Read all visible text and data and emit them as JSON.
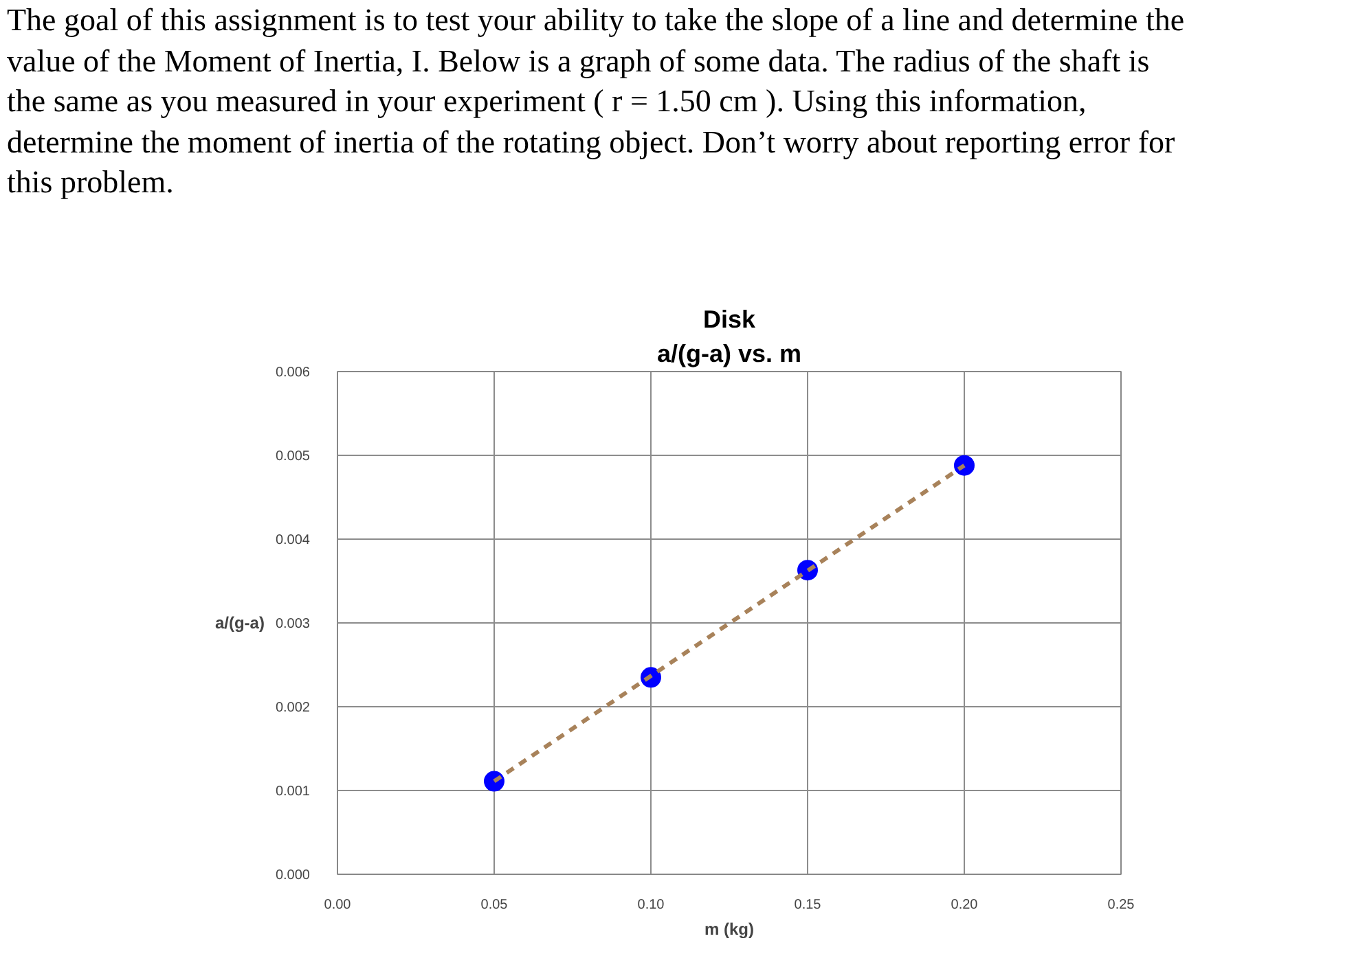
{
  "chart_data": {
    "type": "scatter",
    "title": "Disk",
    "subtitle": "a/(g-a) vs. m",
    "xlabel": "m (kg)",
    "ylabel": "a/(g-a)",
    "annotations": [
      "The goal of this assignment is to test your ability to take the slope of a line and determine the",
      "value of the Moment of Inertia, I. Below is a graph of some data. The radius of the shaft is",
      "the same as you measured in your experiment ( r = 1.50 cm ). Using this information,",
      "determine the moment of inertia of the rotating object. Don’t worry about reporting error for",
      "this problem."
    ],
    "x": [
      0.05,
      0.1,
      0.15,
      0.2
    ],
    "series": [
      {
        "color": "#0000ff",
        "values": [
          0.00111,
          0.00235,
          0.00363,
          0.00488
        ],
        "marker": "circle"
      },
      {
        "type": "line",
        "color": "#a8825a",
        "x": [
          0.05,
          0.2
        ],
        "values": [
          0.00111,
          0.00488
        ],
        "line_style": "dashed",
        "marker": "none"
      }
    ],
    "xlim": [
      0,
      0.25
    ],
    "ylim": [
      0,
      0.006
    ],
    "xticks": [
      {
        "value": 0,
        "label": "0.00"
      },
      {
        "value": 0.05,
        "label": "0.05"
      },
      {
        "value": 0.1,
        "label": "0.10"
      },
      {
        "value": 0.15,
        "label": "0.15"
      },
      {
        "value": 0.2,
        "label": "0.20"
      },
      {
        "value": 0.25,
        "label": "0.25"
      }
    ],
    "yticks": [
      {
        "value": 0,
        "label": "0.000"
      },
      {
        "value": 0.001,
        "label": "0.001"
      },
      {
        "value": 0.002,
        "label": "0.002"
      },
      {
        "value": 0.003,
        "label": "0.003"
      },
      {
        "value": 0.004,
        "label": "0.004"
      },
      {
        "value": 0.005,
        "label": "0.005"
      },
      {
        "value": 0.006,
        "label": "0.006"
      }
    ],
    "grid": true
  }
}
